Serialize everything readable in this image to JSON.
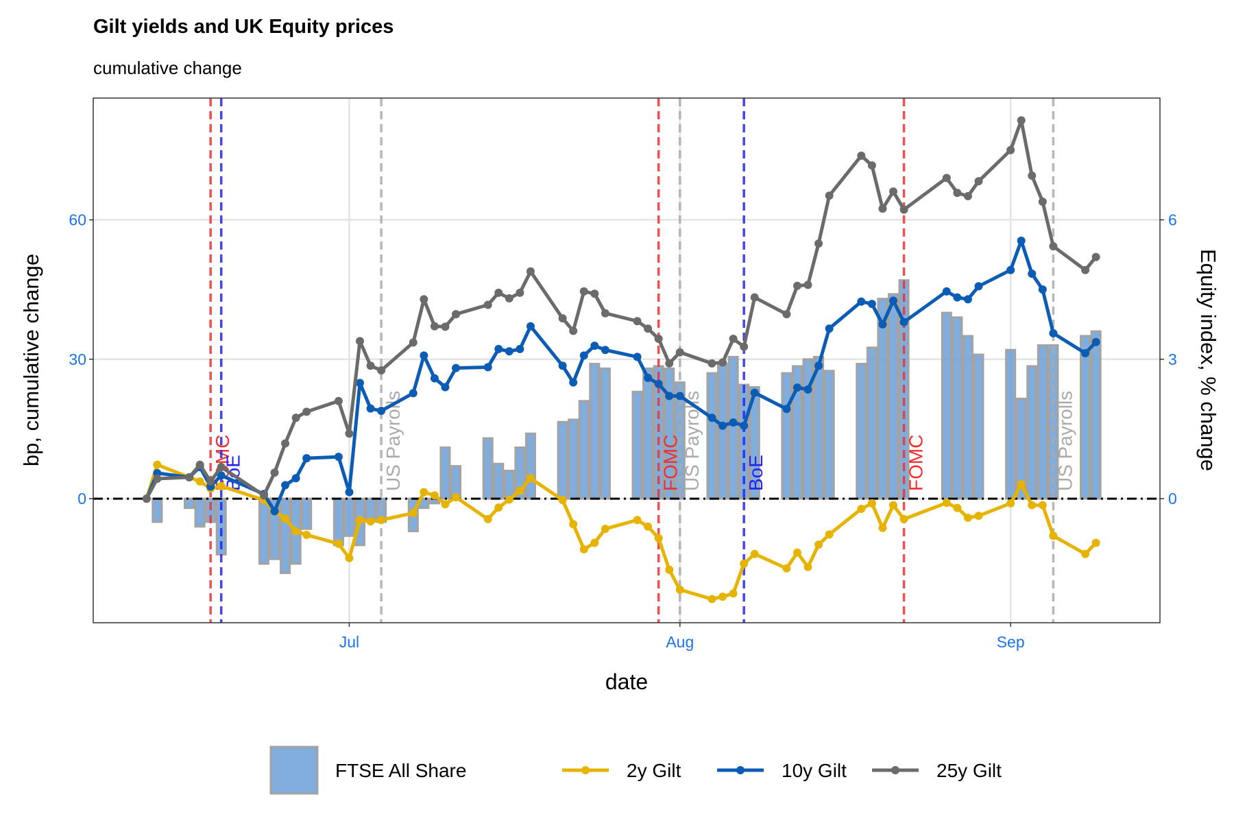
{
  "chart_data": {
    "type": "line",
    "title": "Gilt yields and UK Equity prices",
    "subtitle": "cumulative change",
    "xlabel": "date",
    "ylabel": "bp, cumulative change",
    "y2label": "Equity index, % change",
    "x": [
      163,
      164,
      167,
      168,
      169,
      170,
      174,
      175,
      176,
      177,
      178,
      181,
      182,
      183,
      184,
      185,
      188,
      189,
      190,
      191,
      192,
      195,
      196,
      197,
      198,
      199,
      202,
      203,
      204,
      205,
      206,
      209,
      210,
      211,
      212,
      213,
      216,
      217,
      218,
      219,
      220,
      223,
      224,
      225,
      226,
      227,
      230,
      231,
      232,
      233,
      234,
      238,
      239,
      240,
      241,
      244,
      245,
      246,
      247,
      248,
      251,
      252
    ],
    "xlim": [
      158,
      258
    ],
    "xticks": [
      {
        "value": 182,
        "label": "Jul"
      },
      {
        "value": 213,
        "label": "Aug"
      },
      {
        "value": 244,
        "label": "Sep"
      }
    ],
    "ylim": [
      -26.7,
      86.2
    ],
    "yticks": [
      0,
      30,
      60
    ],
    "y2lim": [
      -2.67,
      8.62
    ],
    "y2ticks": [
      0,
      3,
      6
    ],
    "grid": true,
    "series": [
      {
        "name": "FTSE All Share",
        "type": "bar",
        "axis": "y2",
        "color": "#6a9fd6",
        "edgecolor": "#a3a3a3",
        "values": [
          0,
          -0.5,
          -0.2,
          -0.6,
          -0.5,
          -1.2,
          -1.4,
          -1.3,
          -1.6,
          -1.4,
          -0.65,
          -1.0,
          -0.8,
          -1.0,
          -0.45,
          -0.5,
          -0.7,
          -0.2,
          -0.1,
          1.1,
          0.7,
          1.3,
          0.75,
          0.6,
          1.1,
          1.4,
          1.65,
          1.7,
          2.1,
          2.9,
          2.8,
          2.3,
          2.8,
          2.85,
          2.8,
          2.5,
          2.7,
          2.9,
          3.05,
          2.45,
          2.4,
          2.7,
          2.85,
          3.0,
          3.05,
          2.75,
          2.9,
          3.25,
          4.3,
          4.4,
          4.7,
          4.0,
          3.9,
          3.5,
          3.1,
          3.2,
          2.15,
          2.85,
          3.3,
          3.3,
          3.5,
          3.6
        ]
      },
      {
        "name": "2y Gilt",
        "type": "line",
        "color": "#e6b400",
        "values": [
          0,
          7.3,
          4.6,
          3.7,
          2.2,
          2.7,
          -0.3,
          -2.7,
          -4.3,
          -7,
          -7.8,
          -9.7,
          -12.8,
          -4.6,
          -4.9,
          -4.6,
          -3.1,
          1.4,
          0.7,
          -1.2,
          0.3,
          -4.4,
          -1.9,
          -0.2,
          1.7,
          4.4,
          -0.3,
          -5.5,
          -10.9,
          -9.5,
          -6.5,
          -4.6,
          -6,
          -8.5,
          -15.3,
          -19.6,
          -21.6,
          -21.1,
          -20.4,
          -14,
          -11.9,
          -15,
          -11.6,
          -14.7,
          -9.9,
          -7.7,
          -2.2,
          -1,
          -6.3,
          -1.4,
          -4.4,
          -0.9,
          -2,
          -4.1,
          -3.7,
          -1,
          3.1,
          -1.4,
          -1.4,
          -8,
          -11.9,
          -9.5
        ]
      },
      {
        "name": "10y Gilt",
        "type": "line",
        "color": "#0b5cb5",
        "values": [
          0,
          5.5,
          4.6,
          6.8,
          2.6,
          5,
          1,
          -2.7,
          2.9,
          4.4,
          8.7,
          9,
          1.4,
          24.9,
          19.4,
          18.9,
          22.7,
          30.8,
          25.9,
          24,
          28.1,
          28.3,
          32.2,
          31.7,
          32.2,
          37.1,
          28.6,
          25,
          30.8,
          32.9,
          32,
          30.5,
          26,
          24.7,
          22.1,
          22.1,
          17.4,
          15.7,
          16.4,
          15.7,
          22.8,
          19.3,
          23.9,
          23.5,
          28.6,
          36.6,
          42.4,
          41.9,
          37.5,
          42.6,
          38,
          44.6,
          43.3,
          42.9,
          45.7,
          49.2,
          55.5,
          48.4,
          45,
          35.6,
          31.3,
          33.7
        ]
      },
      {
        "name": "25y Gilt",
        "type": "line",
        "color": "#6b6b6b",
        "values": [
          0,
          4.3,
          4.6,
          7.3,
          3.7,
          6.8,
          0.7,
          5.6,
          11.9,
          17.4,
          18.7,
          21,
          14,
          33.9,
          28.6,
          27.6,
          33.6,
          42.9,
          37.1,
          37,
          39.7,
          41.7,
          44.3,
          43.1,
          44.3,
          48.9,
          38.8,
          36.1,
          44.6,
          44.1,
          39.9,
          38.2,
          36.6,
          34.4,
          29.1,
          31.5,
          29.1,
          29.3,
          34.4,
          32.7,
          43.3,
          39.7,
          45.8,
          46,
          54.9,
          65.2,
          73.8,
          71.7,
          62.4,
          66.1,
          62.2,
          69,
          65.8,
          65.1,
          68.3,
          75,
          81.4,
          69.5,
          63.9,
          54.3,
          49.2,
          52
        ]
      }
    ],
    "events": [
      {
        "date": 169,
        "label": "FOMC",
        "color": "#ee3030"
      },
      {
        "date": 170,
        "label": "BoE",
        "color": "#2222ee"
      },
      {
        "date": 185,
        "label": "US Payrolls",
        "color": "#aaaaaa"
      },
      {
        "date": 211,
        "label": "FOMC",
        "color": "#ee3030"
      },
      {
        "date": 213,
        "label": "US Payrolls",
        "color": "#aaaaaa"
      },
      {
        "date": 219,
        "label": "BoE",
        "color": "#2222ee"
      },
      {
        "date": 234,
        "label": "FOMC",
        "color": "#ee3030"
      },
      {
        "date": 248,
        "label": "US Payrolls",
        "color": "#aaaaaa"
      }
    ]
  }
}
